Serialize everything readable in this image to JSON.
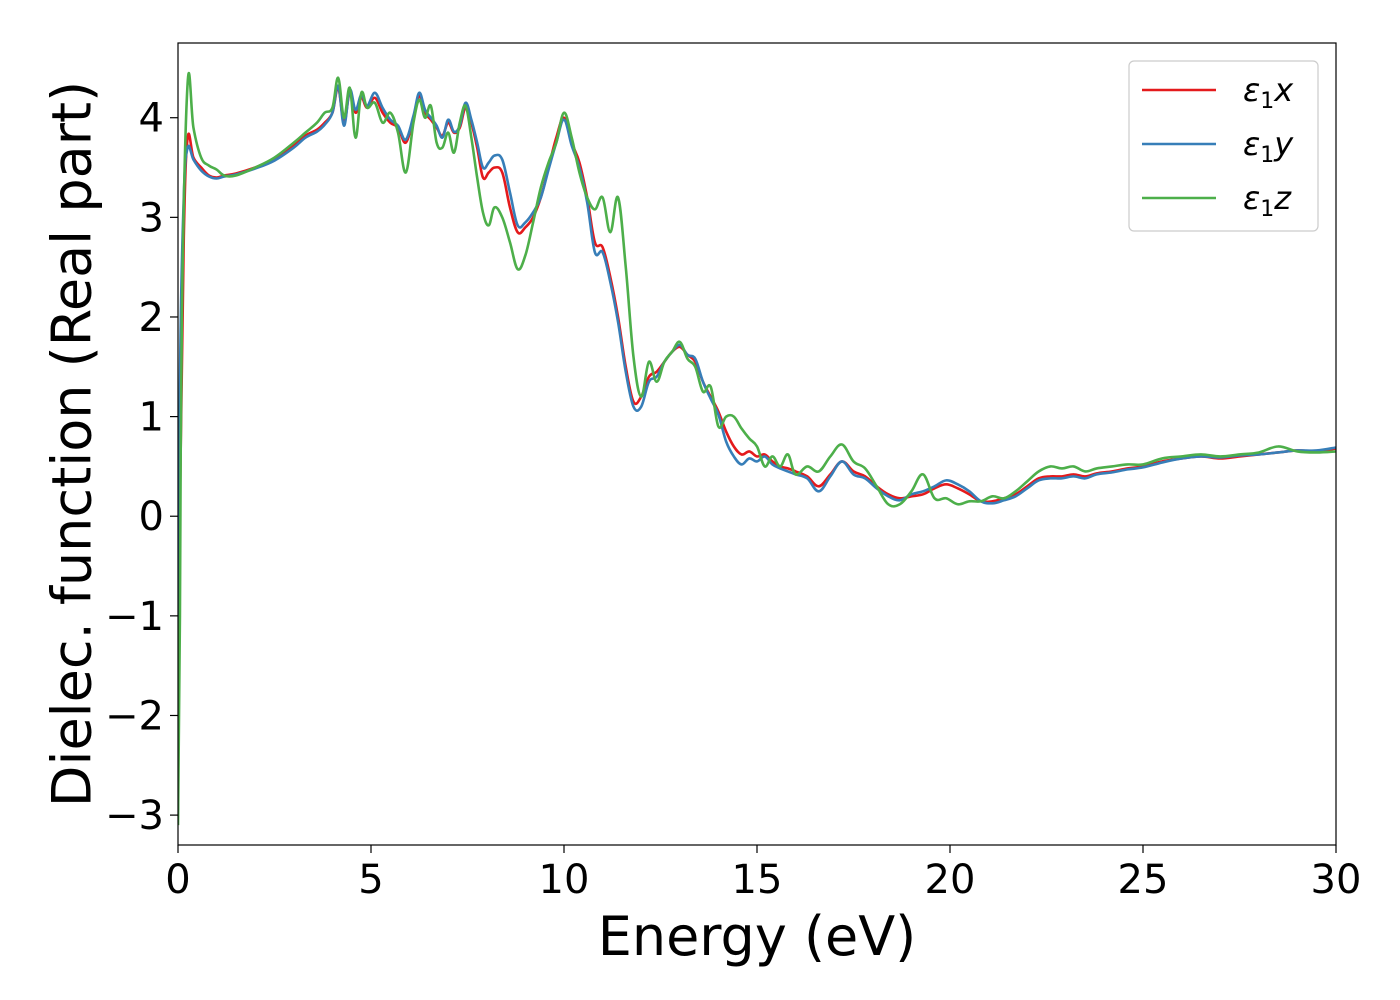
{
  "chart_data": {
    "type": "line",
    "title": "",
    "xlabel": "Energy (eV)",
    "ylabel": "Dielec. function (Real part)",
    "xlim": [
      0,
      30
    ],
    "ylim": [
      -3.3,
      4.75
    ],
    "xticks": [
      0,
      5,
      10,
      15,
      20,
      25,
      30
    ],
    "yticks": [
      -3,
      -2,
      -1,
      0,
      1,
      2,
      3,
      4
    ],
    "xtick_labels": [
      "0",
      "5",
      "10",
      "15",
      "20",
      "25",
      "30"
    ],
    "ytick_labels": [
      "−3",
      "−2",
      "−1",
      "0",
      "1",
      "2",
      "3",
      "4"
    ],
    "grid": false,
    "legend_position": "top-right",
    "series": [
      {
        "name": "ε₁x",
        "label_main": "ε",
        "label_sub": "1",
        "label_tail": "x",
        "color": "#e41a1c",
        "x": [
          0,
          0.05,
          0.15,
          0.25,
          0.4,
          0.6,
          0.8,
          1.0,
          1.2,
          1.5,
          2.0,
          2.5,
          3.0,
          3.3,
          3.6,
          3.8,
          4.0,
          4.15,
          4.3,
          4.45,
          4.6,
          4.75,
          4.9,
          5.1,
          5.3,
          5.5,
          5.7,
          5.9,
          6.1,
          6.25,
          6.4,
          6.55,
          6.7,
          6.85,
          7.0,
          7.15,
          7.3,
          7.45,
          7.6,
          7.75,
          7.9,
          8.05,
          8.2,
          8.4,
          8.6,
          8.8,
          9.0,
          9.2,
          9.4,
          9.6,
          9.8,
          10.0,
          10.2,
          10.4,
          10.6,
          10.8,
          11.0,
          11.2,
          11.4,
          11.6,
          11.8,
          12.0,
          12.2,
          12.4,
          12.6,
          12.8,
          13.0,
          13.2,
          13.4,
          13.6,
          13.8,
          14.0,
          14.2,
          14.4,
          14.6,
          14.8,
          15.0,
          15.2,
          15.4,
          15.6,
          15.8,
          16.0,
          16.3,
          16.6,
          16.9,
          17.2,
          17.5,
          17.8,
          18.1,
          18.4,
          18.7,
          19.0,
          19.3,
          19.6,
          19.9,
          20.2,
          20.5,
          20.8,
          21.1,
          21.4,
          21.7,
          22.0,
          22.3,
          22.6,
          22.9,
          23.2,
          23.5,
          23.8,
          24.2,
          24.6,
          25.0,
          25.5,
          26.0,
          26.5,
          27.0,
          27.5,
          28.0,
          28.5,
          29.0,
          29.5,
          30.0
        ],
        "y": [
          -2.9,
          0.15,
          2.8,
          3.8,
          3.6,
          3.5,
          3.42,
          3.4,
          3.42,
          3.44,
          3.5,
          3.58,
          3.72,
          3.82,
          3.88,
          3.95,
          4.05,
          4.3,
          3.95,
          4.25,
          4.05,
          4.2,
          4.1,
          4.2,
          4.05,
          3.95,
          3.9,
          3.75,
          4.0,
          4.22,
          4.05,
          3.98,
          3.9,
          3.82,
          3.95,
          3.85,
          3.9,
          4.1,
          3.95,
          3.7,
          3.4,
          3.45,
          3.5,
          3.45,
          3.1,
          2.85,
          2.9,
          3.0,
          3.2,
          3.5,
          3.8,
          4.0,
          3.75,
          3.55,
          3.2,
          2.75,
          2.7,
          2.4,
          2.0,
          1.5,
          1.15,
          1.2,
          1.4,
          1.45,
          1.55,
          1.65,
          1.7,
          1.62,
          1.55,
          1.35,
          1.2,
          1.05,
          0.85,
          0.7,
          0.62,
          0.65,
          0.6,
          0.62,
          0.55,
          0.5,
          0.48,
          0.45,
          0.4,
          0.3,
          0.42,
          0.55,
          0.45,
          0.4,
          0.3,
          0.22,
          0.18,
          0.2,
          0.22,
          0.28,
          0.32,
          0.28,
          0.22,
          0.15,
          0.15,
          0.18,
          0.22,
          0.3,
          0.38,
          0.4,
          0.4,
          0.42,
          0.4,
          0.43,
          0.45,
          0.48,
          0.5,
          0.55,
          0.58,
          0.6,
          0.58,
          0.6,
          0.62,
          0.64,
          0.66,
          0.65,
          0.68
        ]
      },
      {
        "name": "ε₁y",
        "label_main": "ε",
        "label_sub": "1",
        "label_tail": "y",
        "color": "#377eb8",
        "x": [
          0,
          0.05,
          0.15,
          0.25,
          0.4,
          0.6,
          0.8,
          1.0,
          1.2,
          1.5,
          2.0,
          2.5,
          3.0,
          3.3,
          3.6,
          3.8,
          4.0,
          4.15,
          4.3,
          4.45,
          4.6,
          4.75,
          4.9,
          5.1,
          5.3,
          5.5,
          5.7,
          5.9,
          6.1,
          6.25,
          6.4,
          6.55,
          6.7,
          6.85,
          7.0,
          7.15,
          7.3,
          7.45,
          7.6,
          7.75,
          7.9,
          8.05,
          8.2,
          8.4,
          8.6,
          8.8,
          9.0,
          9.2,
          9.4,
          9.6,
          9.8,
          10.0,
          10.2,
          10.4,
          10.6,
          10.8,
          11.0,
          11.2,
          11.4,
          11.6,
          11.8,
          12.0,
          12.2,
          12.4,
          12.6,
          12.8,
          13.0,
          13.2,
          13.4,
          13.6,
          13.8,
          14.0,
          14.2,
          14.4,
          14.6,
          14.8,
          15.0,
          15.2,
          15.4,
          15.6,
          15.8,
          16.0,
          16.3,
          16.6,
          16.9,
          17.2,
          17.5,
          17.8,
          18.1,
          18.4,
          18.7,
          19.0,
          19.3,
          19.6,
          19.9,
          20.2,
          20.5,
          20.8,
          21.1,
          21.4,
          21.7,
          22.0,
          22.3,
          22.6,
          22.9,
          23.2,
          23.5,
          23.8,
          24.2,
          24.6,
          25.0,
          25.5,
          26.0,
          26.5,
          27.0,
          27.5,
          28.0,
          28.5,
          29.0,
          29.5,
          30.0
        ],
        "y": [
          -2.95,
          1.3,
          3.2,
          3.7,
          3.58,
          3.47,
          3.41,
          3.39,
          3.41,
          3.43,
          3.49,
          3.57,
          3.7,
          3.8,
          3.86,
          3.93,
          4.05,
          4.32,
          3.92,
          4.28,
          4.08,
          4.23,
          4.12,
          4.25,
          4.1,
          3.98,
          3.92,
          3.78,
          4.02,
          4.25,
          4.08,
          4.0,
          3.92,
          3.8,
          3.98,
          3.86,
          3.92,
          4.15,
          3.98,
          3.75,
          3.5,
          3.55,
          3.62,
          3.58,
          3.25,
          2.92,
          2.95,
          3.05,
          3.2,
          3.48,
          3.75,
          3.98,
          3.72,
          3.5,
          3.15,
          2.65,
          2.65,
          2.35,
          1.95,
          1.45,
          1.1,
          1.1,
          1.35,
          1.4,
          1.55,
          1.65,
          1.72,
          1.62,
          1.58,
          1.35,
          1.18,
          1.02,
          0.75,
          0.6,
          0.52,
          0.58,
          0.55,
          0.6,
          0.52,
          0.48,
          0.45,
          0.42,
          0.38,
          0.25,
          0.4,
          0.55,
          0.42,
          0.38,
          0.28,
          0.2,
          0.16,
          0.22,
          0.25,
          0.3,
          0.36,
          0.32,
          0.25,
          0.15,
          0.13,
          0.16,
          0.2,
          0.28,
          0.36,
          0.38,
          0.38,
          0.4,
          0.38,
          0.42,
          0.44,
          0.47,
          0.49,
          0.54,
          0.58,
          0.6,
          0.59,
          0.61,
          0.62,
          0.64,
          0.66,
          0.66,
          0.69
        ]
      },
      {
        "name": "ε₁z",
        "label_main": "ε",
        "label_sub": "1",
        "label_tail": "z",
        "color": "#4daf4a",
        "x": [
          0,
          0.05,
          0.1,
          0.25,
          0.4,
          0.6,
          0.8,
          1.0,
          1.2,
          1.5,
          2.0,
          2.5,
          3.0,
          3.3,
          3.6,
          3.8,
          4.0,
          4.15,
          4.3,
          4.45,
          4.6,
          4.75,
          4.9,
          5.1,
          5.3,
          5.5,
          5.7,
          5.9,
          6.1,
          6.25,
          6.4,
          6.55,
          6.7,
          6.85,
          7.0,
          7.15,
          7.3,
          7.45,
          7.6,
          7.75,
          7.9,
          8.05,
          8.2,
          8.4,
          8.6,
          8.8,
          9.0,
          9.2,
          9.4,
          9.6,
          9.8,
          10.0,
          10.2,
          10.4,
          10.6,
          10.8,
          11.0,
          11.2,
          11.4,
          11.6,
          11.8,
          12.0,
          12.2,
          12.4,
          12.6,
          12.8,
          13.0,
          13.2,
          13.4,
          13.6,
          13.8,
          14.0,
          14.2,
          14.4,
          14.6,
          14.8,
          15.0,
          15.2,
          15.4,
          15.6,
          15.8,
          16.0,
          16.3,
          16.6,
          16.9,
          17.2,
          17.5,
          17.8,
          18.1,
          18.4,
          18.7,
          19.0,
          19.3,
          19.6,
          19.9,
          20.2,
          20.5,
          20.8,
          21.1,
          21.4,
          21.7,
          22.0,
          22.3,
          22.6,
          22.9,
          23.2,
          23.5,
          23.8,
          24.2,
          24.6,
          25.0,
          25.5,
          26.0,
          26.5,
          27.0,
          27.5,
          28.0,
          28.5,
          29.0,
          29.5,
          30.0
        ],
        "y": [
          -3.1,
          -1.0,
          2.0,
          4.35,
          3.9,
          3.6,
          3.52,
          3.48,
          3.42,
          3.42,
          3.5,
          3.6,
          3.75,
          3.85,
          3.95,
          4.05,
          4.1,
          4.4,
          4.0,
          4.3,
          3.8,
          4.25,
          4.1,
          4.15,
          3.95,
          4.05,
          3.85,
          3.45,
          3.95,
          4.18,
          4.0,
          4.12,
          3.75,
          3.7,
          3.85,
          3.65,
          3.95,
          4.12,
          3.8,
          3.4,
          3.05,
          2.92,
          3.1,
          3.0,
          2.75,
          2.48,
          2.62,
          2.95,
          3.3,
          3.55,
          3.75,
          4.05,
          3.8,
          3.45,
          3.2,
          3.08,
          3.2,
          2.85,
          3.2,
          2.5,
          1.6,
          1.2,
          1.55,
          1.35,
          1.55,
          1.65,
          1.75,
          1.58,
          1.5,
          1.25,
          1.3,
          0.9,
          1.0,
          1.0,
          0.88,
          0.78,
          0.7,
          0.5,
          0.6,
          0.5,
          0.62,
          0.42,
          0.5,
          0.45,
          0.6,
          0.72,
          0.55,
          0.48,
          0.3,
          0.12,
          0.12,
          0.25,
          0.42,
          0.18,
          0.18,
          0.12,
          0.15,
          0.15,
          0.2,
          0.18,
          0.25,
          0.35,
          0.45,
          0.5,
          0.48,
          0.5,
          0.45,
          0.48,
          0.5,
          0.52,
          0.52,
          0.58,
          0.6,
          0.62,
          0.6,
          0.62,
          0.64,
          0.7,
          0.65,
          0.64,
          0.65
        ]
      }
    ]
  }
}
